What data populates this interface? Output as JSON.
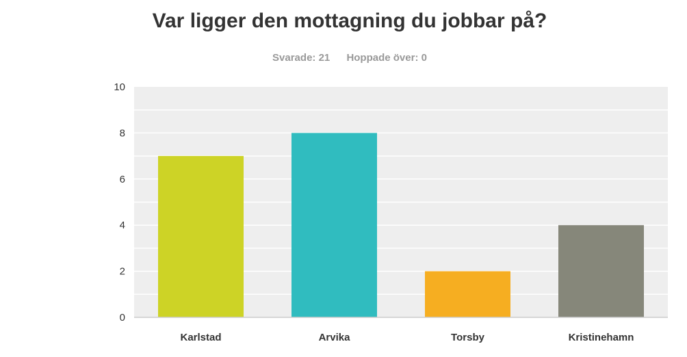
{
  "header": {
    "title": "Var ligger den mottagning du jobbar på?",
    "answered_label": "Svarade: 21",
    "skipped_label": "Hoppade över: 0"
  },
  "chart_data": {
    "type": "bar",
    "title": "Var ligger den mottagning du jobbar på?",
    "categories": [
      "Karlstad",
      "Arvika",
      "Torsby",
      "Kristinehamn"
    ],
    "values": [
      7,
      8,
      2,
      4
    ],
    "colors": [
      "#cdd326",
      "#30bcbf",
      "#f6ae21",
      "#86877a"
    ],
    "xlabel": "",
    "ylabel": "",
    "ylim": [
      0,
      10
    ],
    "yticks": [
      0,
      2,
      4,
      6,
      8,
      10
    ],
    "grid": true,
    "legend": "none"
  }
}
